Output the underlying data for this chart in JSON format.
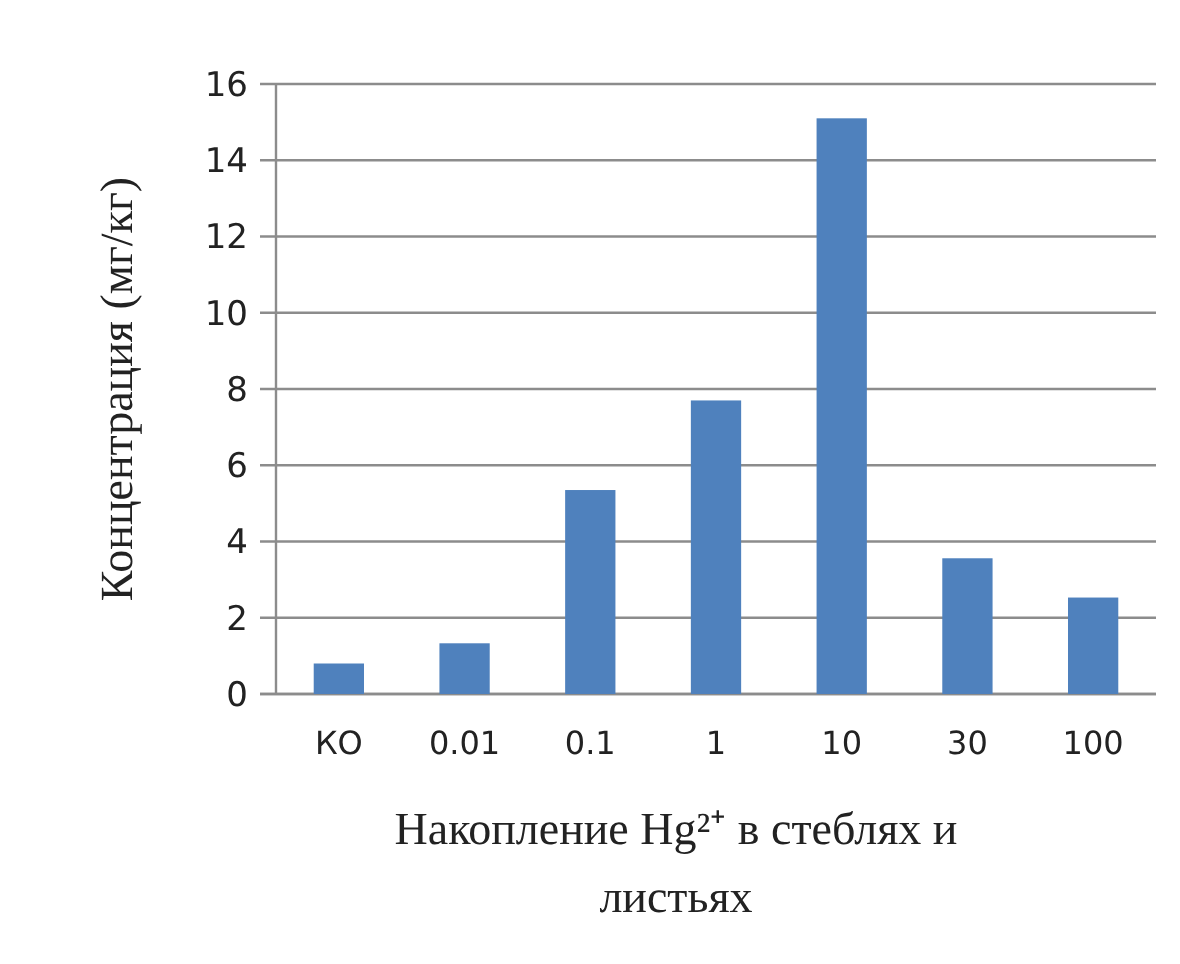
{
  "chart_data": {
    "type": "bar",
    "xlabel": "Накопление Hg²⁺ в стеблях и листьях",
    "ylabel": "Концентрация (мг/кг)",
    "categories": [
      "КО",
      "0.01",
      "0.1",
      "1",
      "10",
      "30",
      "100"
    ],
    "values": [
      0.8,
      1.33,
      5.35,
      7.7,
      15.1,
      3.56,
      2.53
    ],
    "color": "#4f81bd",
    "ylim": [
      0,
      16
    ],
    "yticks": [
      0,
      2,
      4,
      6,
      8,
      10,
      12,
      14,
      16
    ],
    "grid": "y"
  }
}
